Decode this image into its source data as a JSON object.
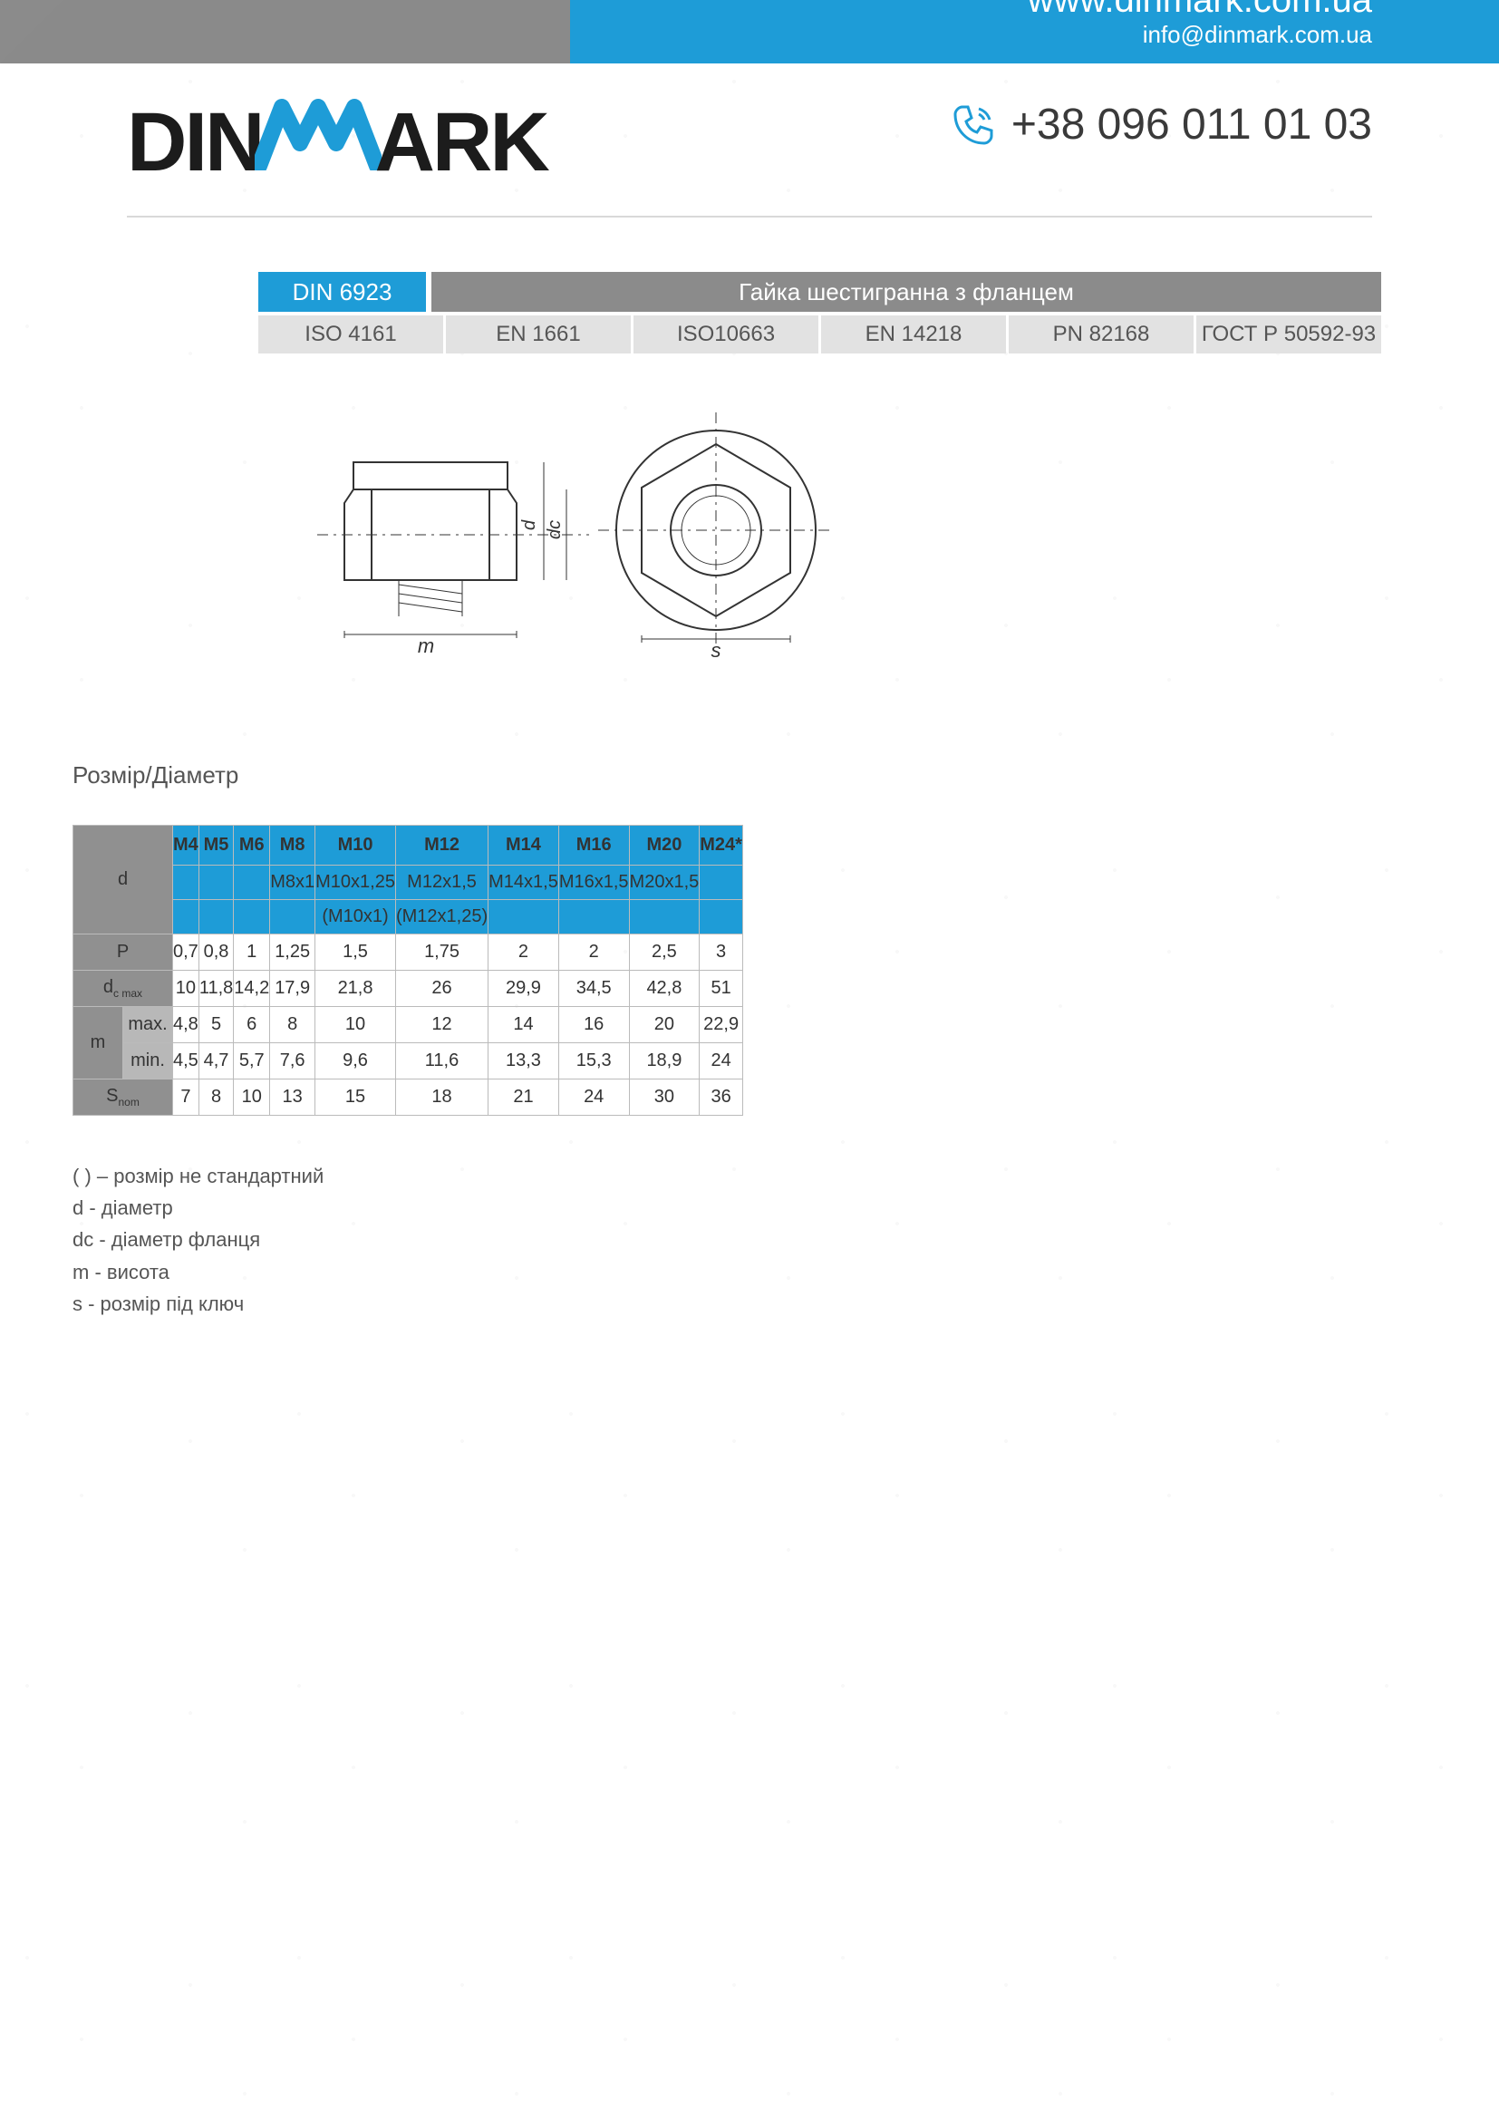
{
  "colors": {
    "accent": "#1e9cd7",
    "accent_dark": "#0e7bb0",
    "grey_header": "#8b8b8b",
    "grey_light": "#e2e2e2",
    "grey_row": "#909090",
    "grey_sub": "#b8b8b8",
    "text": "#3a3a3a",
    "border": "#bbbbbb"
  },
  "header": {
    "logo_pre": "DIN",
    "logo_post": "ARK",
    "phone": "+38 096 011 01 03"
  },
  "title": {
    "din": "DIN 6923",
    "name": "Гайка шестигранна з фланцем",
    "standards": [
      "ISO 4161",
      "EN 1661",
      "ISO10663",
      "EN 14218",
      "PN 82168",
      "ГОСТ Р 50592-93"
    ]
  },
  "diagram": {
    "labels": {
      "m": "m",
      "d": "d",
      "dc": "dc",
      "s": "s"
    }
  },
  "table": {
    "caption": "Розмір/Діаметр",
    "corner_label": "d",
    "sizes": [
      "M4",
      "M5",
      "M6",
      "M8",
      "M10",
      "M12",
      "M14",
      "M16",
      "M20",
      "M24*"
    ],
    "finepitch": [
      "",
      "",
      "",
      "M8x1",
      "M10x1,25",
      "M12x1,5",
      "M14x1,5",
      "M16x1,5",
      "M20x1,5",
      ""
    ],
    "finepitch2": [
      "",
      "",
      "",
      "",
      "(M10x1)",
      "(M12x1,25)",
      "",
      "",
      "",
      ""
    ],
    "rows": [
      {
        "label": "P",
        "sub": "",
        "values": [
          "0,7",
          "0,8",
          "1",
          "1,25",
          "1,5",
          "1,75",
          "2",
          "2",
          "2,5",
          "3"
        ]
      },
      {
        "label": "dc max",
        "sub": "",
        "values": [
          "10",
          "11,8",
          "14,2",
          "17,9",
          "21,8",
          "26",
          "29,9",
          "34,5",
          "42,8",
          "51"
        ]
      },
      {
        "label": "m",
        "sub": "max.",
        "values": [
          "4,8",
          "5",
          "6",
          "8",
          "10",
          "12",
          "14",
          "16",
          "20",
          "22,9"
        ]
      },
      {
        "label": "",
        "sub": "min.",
        "values": [
          "4,5",
          "4,7",
          "5,7",
          "7,6",
          "9,6",
          "11,6",
          "13,3",
          "15,3",
          "18,9",
          "24"
        ]
      },
      {
        "label": "Snom",
        "sub": "",
        "values": [
          "7",
          "8",
          "10",
          "13",
          "15",
          "18",
          "21",
          "24",
          "30",
          "36"
        ]
      }
    ]
  },
  "legend": [
    "( ) – розмір не стандартний",
    "d - діаметр",
    "dc - діаметр фланця",
    "m - висота",
    "s - розмір під ключ"
  ],
  "footer": {
    "url": "www.dinmark.com.ua",
    "email": "info@dinmark.com.ua"
  }
}
